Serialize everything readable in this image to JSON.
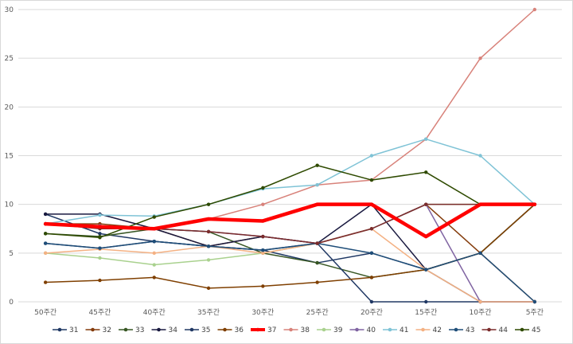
{
  "chart_data": {
    "type": "line",
    "title": "",
    "xlabel": "",
    "ylabel": "",
    "categories": [
      "50주간",
      "45주간",
      "40주간",
      "35주간",
      "30주간",
      "25주간",
      "20주간",
      "15주간",
      "10주간",
      "5주간"
    ],
    "ylim": [
      0,
      30
    ],
    "yticks": [
      0,
      5,
      10,
      15,
      20,
      25,
      30
    ],
    "grid": true,
    "legend": "bottom",
    "series": [
      {
        "name": "31",
        "color": "#1f3864",
        "values": [
          9,
          7,
          6.2,
          5.7,
          5.3,
          4,
          5,
          3.3,
          5,
          10
        ]
      },
      {
        "name": "32",
        "color": "#843c0c",
        "values": [
          8,
          8,
          7.5,
          5.7,
          6.7,
          6,
          7.5,
          10,
          5,
          0
        ]
      },
      {
        "name": "33",
        "color": "#375623",
        "values": [
          7,
          6.7,
          7.5,
          7.2,
          5,
          4,
          2.5,
          3.3,
          5,
          10
        ]
      },
      {
        "name": "34",
        "color": "#1a1a40",
        "values": [
          9,
          9,
          7.5,
          5.7,
          6.7,
          6,
          10,
          3.3,
          0,
          0
        ]
      },
      {
        "name": "35",
        "color": "#203864",
        "values": [
          6,
          5.5,
          6.2,
          5.7,
          5.3,
          6,
          0,
          0,
          0,
          0
        ]
      },
      {
        "name": "36",
        "color": "#7f3f00",
        "values": [
          2,
          2.2,
          2.5,
          1.4,
          1.6,
          2,
          2.5,
          3.3,
          5,
          10
        ]
      },
      {
        "name": "37",
        "color": "#ff0000",
        "values": [
          8,
          7.7,
          7.5,
          8.5,
          8.3,
          10,
          10,
          6.7,
          10,
          10
        ]
      },
      {
        "name": "38",
        "color": "#d8827a",
        "values": [
          8,
          7.8,
          7.5,
          8.5,
          10,
          12,
          12.5,
          16.7,
          25,
          30
        ]
      },
      {
        "name": "39",
        "color": "#a9d18e",
        "values": [
          5,
          4.5,
          3.8,
          4.3,
          5,
          6,
          7.5,
          10,
          10,
          10
        ]
      },
      {
        "name": "40",
        "color": "#8064a2",
        "values": [
          8,
          7.8,
          7.5,
          7.2,
          6.7,
          6,
          7.5,
          10,
          0,
          0
        ]
      },
      {
        "name": "41",
        "color": "#7fc3d6",
        "values": [
          8,
          8.9,
          8.8,
          10,
          11.6,
          12,
          15,
          16.7,
          15,
          10
        ]
      },
      {
        "name": "42",
        "color": "#f4b183",
        "values": [
          5,
          5.4,
          5,
          5.7,
          5,
          6,
          7.5,
          3.3,
          0,
          0
        ]
      },
      {
        "name": "43",
        "color": "#1f4e79",
        "values": [
          6,
          5.5,
          6.2,
          5.7,
          5.3,
          6,
          5,
          3.3,
          5,
          0
        ]
      },
      {
        "name": "44",
        "color": "#7b2c2c",
        "values": [
          8,
          7.5,
          7.5,
          7.2,
          6.7,
          6,
          7.5,
          10,
          10,
          10
        ]
      },
      {
        "name": "45",
        "color": "#2e4a00",
        "values": [
          7,
          6.6,
          8.7,
          10,
          11.7,
          14,
          12.5,
          13.3,
          10,
          10
        ]
      }
    ]
  }
}
